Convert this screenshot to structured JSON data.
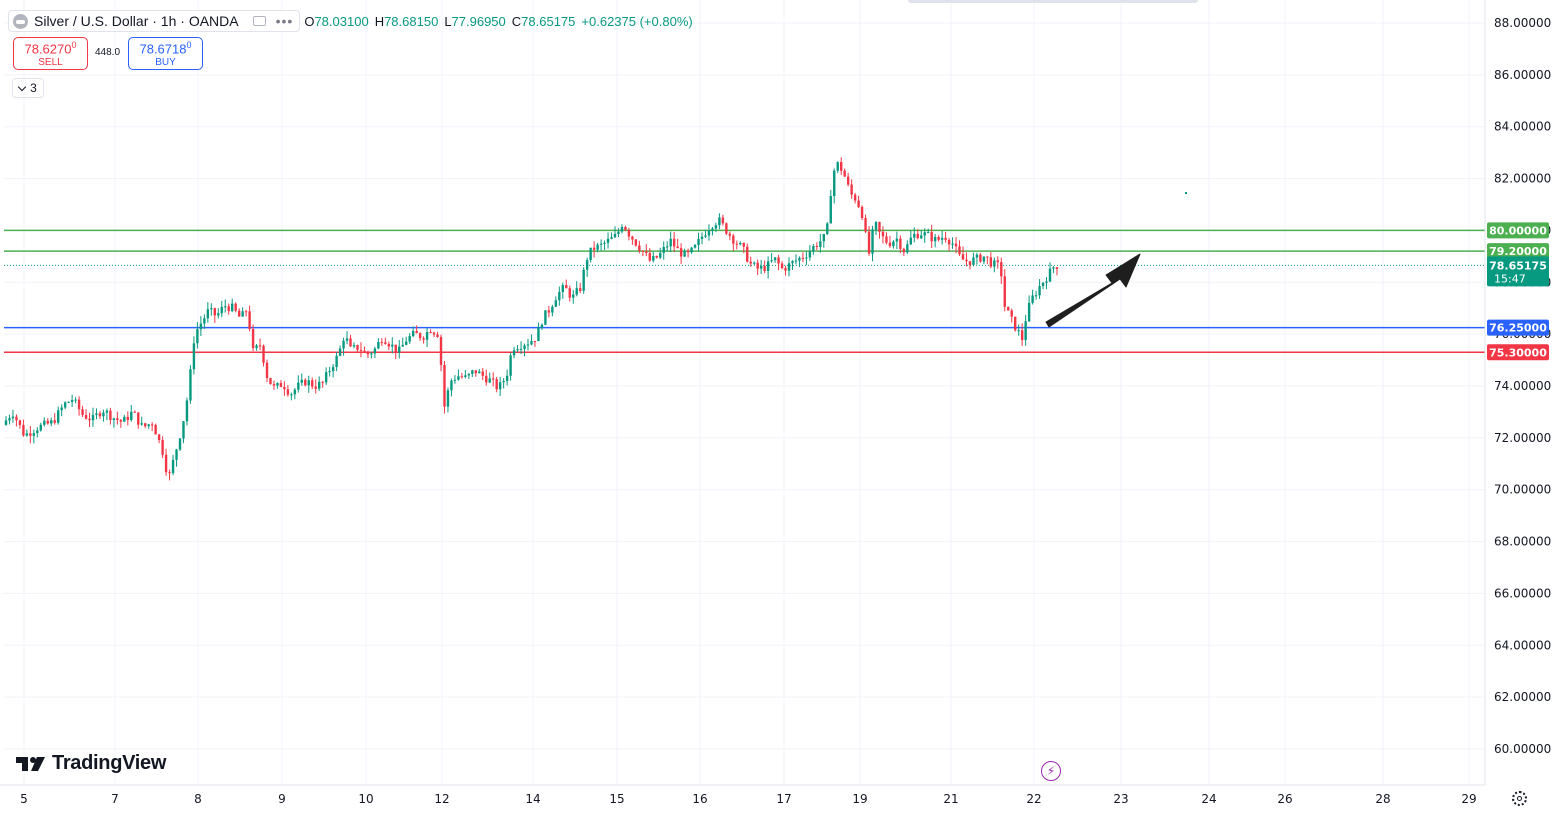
{
  "header": {
    "title": "Silver / U.S. Dollar · 1h · OANDA",
    "ohlc": [
      {
        "k": "O",
        "v": "78.03100"
      },
      {
        "k": "H",
        "v": "78.68150"
      },
      {
        "k": "L",
        "v": "77.96950"
      },
      {
        "k": "C",
        "v": "78.65175"
      },
      {
        "k": "",
        "v": "+0.62375 (+0.80%)"
      }
    ]
  },
  "trade": {
    "sell_price": "78.6270",
    "sell_sup": "0",
    "sell_label": "SELL",
    "spread": "448.0",
    "buy_price": "78.6718",
    "buy_sup": "0",
    "buy_label": "BUY"
  },
  "indicators_count": "3",
  "branding": {
    "name": "TradingView"
  },
  "colors": {
    "up": "#089981",
    "down": "#f23645",
    "green_level": "#4caf50",
    "blue_level": "#2962ff",
    "red_level": "#f23645",
    "grid": "#f0f3fa"
  },
  "chart_data": {
    "type": "candlestick",
    "ylim": [
      59.2,
      88.6
    ],
    "y_ticks": [
      60,
      62,
      64,
      66,
      68,
      70,
      72,
      74,
      76,
      78,
      80,
      82,
      84,
      86,
      88
    ],
    "y_tick_labels": [
      "60.00000",
      "62.00000",
      "64.00000",
      "66.00000",
      "68.00000",
      "70.00000",
      "72.00000",
      "74.00000",
      "76.00000",
      "78.00000",
      "80.00000",
      "82.00000",
      "84.00000",
      "86.00000",
      "88.00000"
    ],
    "x_tick_labels": [
      "5",
      "7",
      "8",
      "9",
      "10",
      "12",
      "14",
      "15",
      "16",
      "17",
      "19",
      "21",
      "22",
      "23",
      "24",
      "26",
      "28",
      "29"
    ],
    "current_price": {
      "value": 78.65175,
      "label": "78.65175",
      "countdown": "15:47"
    },
    "levels": [
      {
        "value": 80.0,
        "label": "80.00000",
        "color": "#4caf50"
      },
      {
        "value": 79.2,
        "label": "79.20000",
        "color": "#4caf50"
      },
      {
        "value": 76.25,
        "label": "76.25000",
        "color": "#2962ff"
      },
      {
        "value": 75.3,
        "label": "75.30000",
        "color": "#f23645"
      }
    ],
    "price_path": [
      [
        0,
        72.5
      ],
      [
        10,
        73.0
      ],
      [
        22,
        72.1
      ],
      [
        35,
        72.4
      ],
      [
        50,
        72.6
      ],
      [
        62,
        73.3
      ],
      [
        70,
        73.5
      ],
      [
        80,
        72.9
      ],
      [
        90,
        72.7
      ],
      [
        100,
        73.1
      ],
      [
        110,
        72.8
      ],
      [
        120,
        72.6
      ],
      [
        130,
        73.0
      ],
      [
        140,
        72.4
      ],
      [
        150,
        72.6
      ],
      [
        160,
        71.5
      ],
      [
        166,
        70.4
      ],
      [
        172,
        71.3
      ],
      [
        180,
        72.5
      ],
      [
        186,
        73.8
      ],
      [
        192,
        76.0
      ],
      [
        198,
        76.4
      ],
      [
        206,
        76.9
      ],
      [
        214,
        76.7
      ],
      [
        222,
        77.1
      ],
      [
        230,
        77.0
      ],
      [
        238,
        76.6
      ],
      [
        245,
        77.0
      ],
      [
        250,
        75.3
      ],
      [
        258,
        75.6
      ],
      [
        265,
        74.3
      ],
      [
        272,
        73.9
      ],
      [
        280,
        74.1
      ],
      [
        288,
        73.7
      ],
      [
        296,
        74.0
      ],
      [
        304,
        74.2
      ],
      [
        312,
        74.0
      ],
      [
        320,
        74.1
      ],
      [
        328,
        74.7
      ],
      [
        336,
        75.2
      ],
      [
        342,
        76.0
      ],
      [
        348,
        75.4
      ],
      [
        356,
        75.5
      ],
      [
        364,
        75.2
      ],
      [
        372,
        75.4
      ],
      [
        380,
        75.9
      ],
      [
        388,
        75.6
      ],
      [
        396,
        75.3
      ],
      [
        404,
        75.8
      ],
      [
        412,
        76.0
      ],
      [
        420,
        75.9
      ],
      [
        428,
        76.2
      ],
      [
        436,
        76.0
      ],
      [
        442,
        73.2
      ],
      [
        448,
        74.2
      ],
      [
        455,
        74.4
      ],
      [
        464,
        74.3
      ],
      [
        472,
        74.6
      ],
      [
        480,
        74.4
      ],
      [
        488,
        74.2
      ],
      [
        496,
        73.9
      ],
      [
        504,
        74.4
      ],
      [
        510,
        75.5
      ],
      [
        518,
        75.6
      ],
      [
        526,
        75.7
      ],
      [
        534,
        75.9
      ],
      [
        540,
        76.6
      ],
      [
        546,
        76.9
      ],
      [
        554,
        77.5
      ],
      [
        562,
        77.8
      ],
      [
        570,
        77.4
      ],
      [
        578,
        77.8
      ],
      [
        584,
        78.9
      ],
      [
        590,
        79.3
      ],
      [
        598,
        79.4
      ],
      [
        606,
        79.6
      ],
      [
        614,
        79.8
      ],
      [
        620,
        80.3
      ],
      [
        626,
        79.9
      ],
      [
        632,
        79.6
      ],
      [
        640,
        79.2
      ],
      [
        648,
        78.8
      ],
      [
        656,
        79.0
      ],
      [
        662,
        79.3
      ],
      [
        668,
        79.6
      ],
      [
        676,
        79.2
      ],
      [
        684,
        79.0
      ],
      [
        692,
        79.3
      ],
      [
        700,
        79.8
      ],
      [
        708,
        80.2
      ],
      [
        716,
        80.4
      ],
      [
        724,
        80.0
      ],
      [
        732,
        79.6
      ],
      [
        740,
        79.3
      ],
      [
        748,
        78.7
      ],
      [
        756,
        78.5
      ],
      [
        764,
        78.6
      ],
      [
        772,
        78.9
      ],
      [
        780,
        78.5
      ],
      [
        788,
        78.7
      ],
      [
        796,
        78.9
      ],
      [
        804,
        79.1
      ],
      [
        812,
        79.4
      ],
      [
        818,
        79.6
      ],
      [
        824,
        79.8
      ],
      [
        830,
        82.2
      ],
      [
        836,
        82.6
      ],
      [
        842,
        82.1
      ],
      [
        848,
        81.4
      ],
      [
        854,
        81.2
      ],
      [
        860,
        80.6
      ],
      [
        866,
        79.0
      ],
      [
        872,
        80.3
      ],
      [
        878,
        79.8
      ],
      [
        886,
        79.5
      ],
      [
        894,
        79.7
      ],
      [
        902,
        79.2
      ],
      [
        910,
        79.8
      ],
      [
        918,
        79.9
      ],
      [
        926,
        79.8
      ],
      [
        934,
        79.6
      ],
      [
        942,
        79.8
      ],
      [
        950,
        79.5
      ],
      [
        958,
        78.9
      ],
      [
        966,
        78.8
      ],
      [
        974,
        78.9
      ],
      [
        982,
        79.0
      ],
      [
        990,
        78.7
      ],
      [
        998,
        78.6
      ],
      [
        1002,
        77.1
      ],
      [
        1008,
        76.6
      ],
      [
        1014,
        76.2
      ],
      [
        1020,
        75.8
      ],
      [
        1024,
        76.8
      ],
      [
        1030,
        77.4
      ],
      [
        1038,
        77.9
      ],
      [
        1046,
        78.3
      ],
      [
        1052,
        78.65
      ]
    ]
  }
}
